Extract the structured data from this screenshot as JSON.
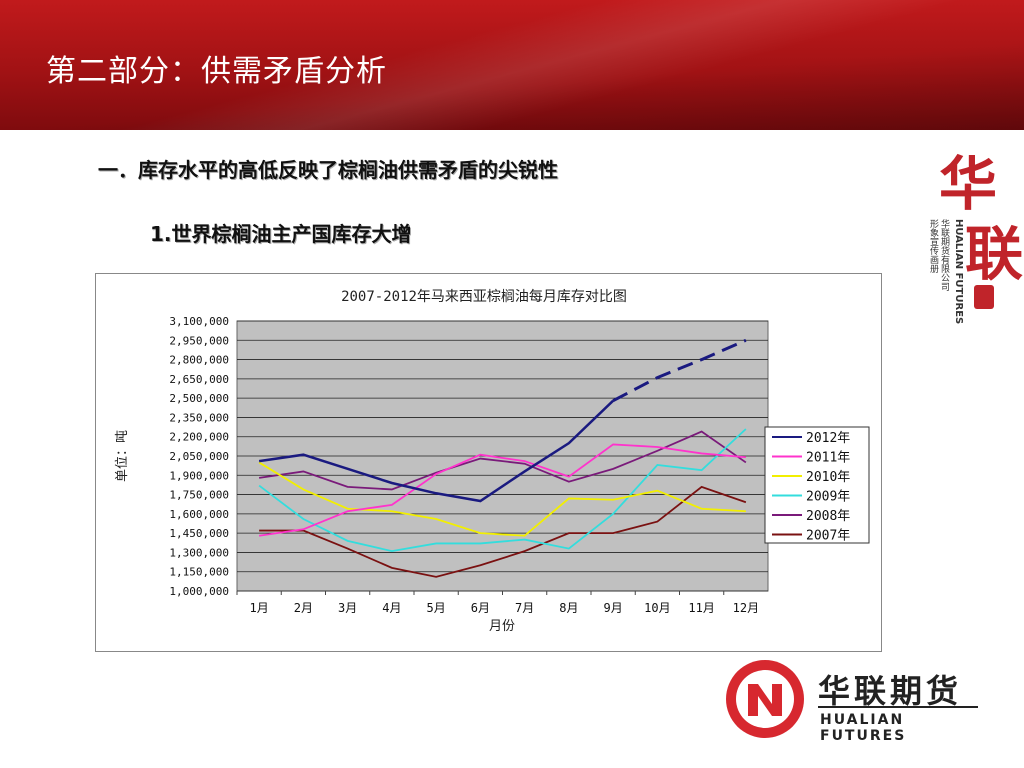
{
  "header": {
    "title": "第二部分：供需矛盾分析"
  },
  "section": {
    "heading1": "一．库存水平的高低反映了棕榈油供需矛盾的尖锐性",
    "heading2": "1.世界棕榈油主产国库存大增"
  },
  "side_logo": {
    "char1": "华",
    "char2": "联",
    "en": "HUALIAN FUTURES",
    "cn_line1": "华联期货有限公司",
    "cn_line2": "形象宣传画册"
  },
  "bottom_logo": {
    "brand_cn": "华联期货",
    "brand_en": "HUALIAN FUTURES"
  },
  "colors": {
    "header_red": "#a11214",
    "brand_red": "#d7282f",
    "plot_bg": "#c0c0c0"
  },
  "chart_data": {
    "type": "line",
    "title": "2007-2012年马来西亚棕榈油每月库存对比图",
    "xlabel": "月份",
    "ylabel": "单位：吨",
    "categories": [
      "1月",
      "2月",
      "3月",
      "4月",
      "5月",
      "6月",
      "7月",
      "8月",
      "9月",
      "10月",
      "11月",
      "12月"
    ],
    "ylim": [
      1000000,
      3100000
    ],
    "yticks": [
      1000000,
      1150000,
      1300000,
      1450000,
      1600000,
      1750000,
      1900000,
      2050000,
      2200000,
      2350000,
      2500000,
      2650000,
      2800000,
      2950000,
      3100000
    ],
    "ytick_labels": [
      "1,000,000",
      "1,150,000",
      "1,300,000",
      "1,450,000",
      "1,600,000",
      "1,750,000",
      "1,900,000",
      "2,050,000",
      "2,200,000",
      "2,350,000",
      "2,500,000",
      "2,650,000",
      "2,800,000",
      "2,950,000",
      "3,100,000"
    ],
    "grid": true,
    "legend": "right",
    "series": [
      {
        "name": "2012年",
        "color": "#1a1a80",
        "values": [
          2010000,
          2060000,
          1950000,
          1840000,
          1760000,
          1700000,
          1930000,
          2150000,
          2480000,
          2660000,
          2800000,
          2950000
        ],
        "dashed_from_index": 8
      },
      {
        "name": "2011年",
        "color": "#ff33cc",
        "values": [
          1430000,
          1480000,
          1620000,
          1670000,
          1910000,
          2060000,
          2010000,
          1890000,
          2140000,
          2120000,
          2070000,
          2040000
        ]
      },
      {
        "name": "2010年",
        "color": "#f2ef00",
        "values": [
          2000000,
          1790000,
          1640000,
          1620000,
          1560000,
          1450000,
          1430000,
          1720000,
          1710000,
          1780000,
          1640000,
          1620000
        ]
      },
      {
        "name": "2009年",
        "color": "#33dddd",
        "values": [
          1820000,
          1560000,
          1390000,
          1310000,
          1370000,
          1370000,
          1400000,
          1330000,
          1600000,
          1980000,
          1940000,
          2260000
        ]
      },
      {
        "name": "2008年",
        "color": "#7a1a7a",
        "values": [
          1880000,
          1930000,
          1810000,
          1790000,
          1920000,
          2030000,
          1990000,
          1850000,
          1950000,
          2090000,
          2240000,
          2000000
        ]
      },
      {
        "name": "2007年",
        "color": "#7a1111",
        "values": [
          1470000,
          1470000,
          1330000,
          1180000,
          1110000,
          1200000,
          1310000,
          1450000,
          1450000,
          1540000,
          1810000,
          1690000
        ]
      }
    ]
  }
}
